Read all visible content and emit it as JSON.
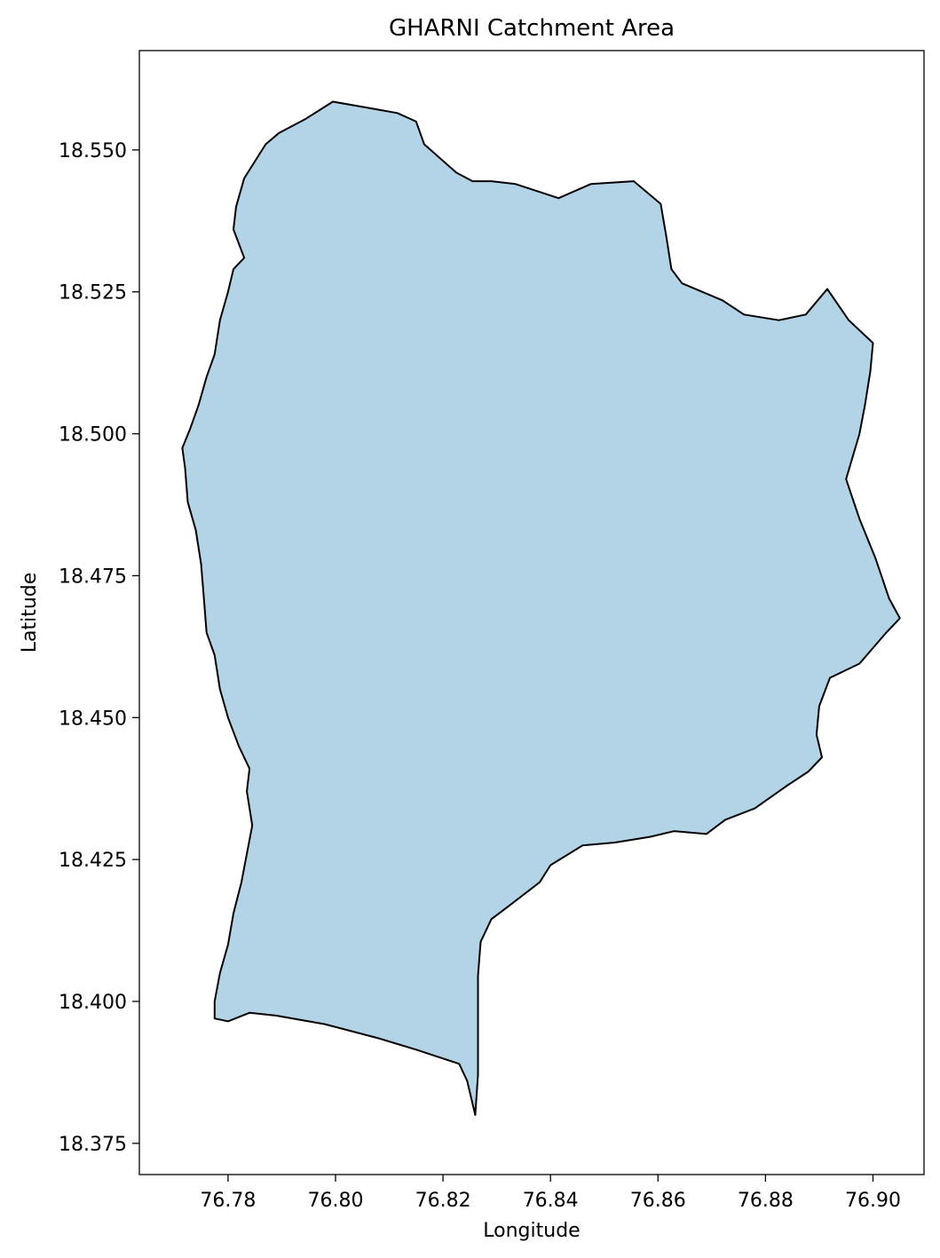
{
  "title": "GHARNI Catchment Area",
  "x_axis": {
    "label": "Longitude",
    "range": [
      76.7635,
      76.9095
    ],
    "ticks": [
      76.78,
      76.8,
      76.82,
      76.84,
      76.86,
      76.88,
      76.9
    ],
    "tick_labels": [
      "76.78",
      "76.80",
      "76.82",
      "76.84",
      "76.86",
      "76.88",
      "76.90"
    ]
  },
  "y_axis": {
    "label": "Latitude",
    "range": [
      18.3695,
      18.5675
    ],
    "ticks": [
      18.375,
      18.4,
      18.425,
      18.45,
      18.475,
      18.5,
      18.525,
      18.55
    ],
    "tick_labels": [
      "18.375",
      "18.400",
      "18.425",
      "18.450",
      "18.475",
      "18.500",
      "18.525",
      "18.550"
    ]
  },
  "style": {
    "fill_color": "#b3d4e6",
    "edge_color": "#000000"
  },
  "catchment_boundary": [
    [
      76.7995,
      18.5585
    ],
    [
      76.8055,
      18.5575
    ],
    [
      76.8115,
      18.5565
    ],
    [
      76.815,
      18.555
    ],
    [
      76.8165,
      18.551
    ],
    [
      76.8225,
      18.546
    ],
    [
      76.8255,
      18.5445
    ],
    [
      76.829,
      18.5445
    ],
    [
      76.8335,
      18.544
    ],
    [
      76.8415,
      18.5415
    ],
    [
      76.8475,
      18.544
    ],
    [
      76.8555,
      18.5445
    ],
    [
      76.8605,
      18.5405
    ],
    [
      76.8615,
      18.535
    ],
    [
      76.8625,
      18.529
    ],
    [
      76.8645,
      18.5265
    ],
    [
      76.872,
      18.5235
    ],
    [
      76.876,
      18.521
    ],
    [
      76.8825,
      18.52
    ],
    [
      76.8875,
      18.521
    ],
    [
      76.8915,
      18.5255
    ],
    [
      76.8955,
      18.52
    ],
    [
      76.9,
      18.516
    ],
    [
      76.8995,
      18.511
    ],
    [
      76.8985,
      18.505
    ],
    [
      76.8975,
      18.5
    ],
    [
      76.895,
      18.492
    ],
    [
      76.8975,
      18.485
    ],
    [
      76.9005,
      18.478
    ],
    [
      76.903,
      18.471
    ],
    [
      76.905,
      18.4675
    ],
    [
      76.9025,
      18.465
    ],
    [
      76.8975,
      18.4595
    ],
    [
      76.892,
      18.457
    ],
    [
      76.89,
      18.452
    ],
    [
      76.8895,
      18.447
    ],
    [
      76.8905,
      18.443
    ],
    [
      76.888,
      18.4405
    ],
    [
      76.884,
      18.438
    ],
    [
      76.878,
      18.434
    ],
    [
      76.8725,
      18.432
    ],
    [
      76.869,
      18.4295
    ],
    [
      76.863,
      18.43
    ],
    [
      76.8585,
      18.429
    ],
    [
      76.852,
      18.428
    ],
    [
      76.846,
      18.4275
    ],
    [
      76.84,
      18.424
    ],
    [
      76.838,
      18.421
    ],
    [
      76.8325,
      18.417
    ],
    [
      76.829,
      18.4145
    ],
    [
      76.827,
      18.4105
    ],
    [
      76.8265,
      18.4045
    ],
    [
      76.8265,
      18.387
    ],
    [
      76.826,
      18.38
    ],
    [
      76.8245,
      18.386
    ],
    [
      76.823,
      18.389
    ],
    [
      76.815,
      18.3915
    ],
    [
      76.808,
      18.3935
    ],
    [
      76.798,
      18.396
    ],
    [
      76.789,
      18.3975
    ],
    [
      76.784,
      18.398
    ],
    [
      76.78,
      18.3965
    ],
    [
      76.7775,
      18.397
    ],
    [
      76.7775,
      18.4
    ],
    [
      76.7785,
      18.405
    ],
    [
      76.78,
      18.41
    ],
    [
      76.781,
      18.4155
    ],
    [
      76.7825,
      18.421
    ],
    [
      76.7835,
      18.426
    ],
    [
      76.7845,
      18.431
    ],
    [
      76.7835,
      18.437
    ],
    [
      76.784,
      18.441
    ],
    [
      76.782,
      18.445
    ],
    [
      76.78,
      18.45
    ],
    [
      76.7785,
      18.455
    ],
    [
      76.7775,
      18.461
    ],
    [
      76.776,
      18.465
    ],
    [
      76.7755,
      18.471
    ],
    [
      76.775,
      18.477
    ],
    [
      76.774,
      18.483
    ],
    [
      76.7725,
      18.488
    ],
    [
      76.772,
      18.494
    ],
    [
      76.7715,
      18.4975
    ],
    [
      76.773,
      18.501
    ],
    [
      76.7745,
      18.505
    ],
    [
      76.776,
      18.51
    ],
    [
      76.7775,
      18.514
    ],
    [
      76.7785,
      18.52
    ],
    [
      76.78,
      18.525
    ],
    [
      76.781,
      18.529
    ],
    [
      76.783,
      18.531
    ],
    [
      76.781,
      18.536
    ],
    [
      76.7815,
      18.54
    ],
    [
      76.783,
      18.545
    ],
    [
      76.787,
      18.551
    ],
    [
      76.7895,
      18.553
    ],
    [
      76.7945,
      18.5555
    ]
  ]
}
